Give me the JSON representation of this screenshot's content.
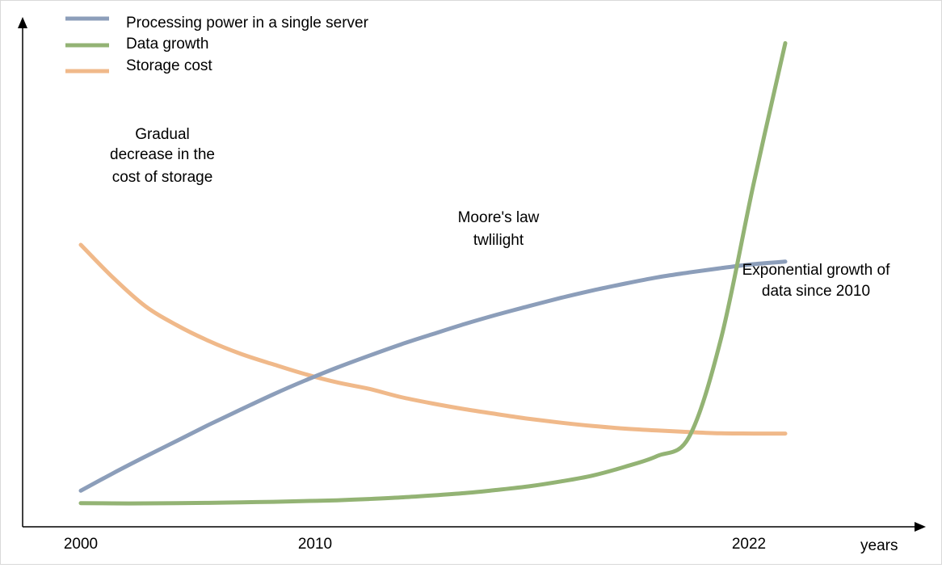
{
  "chart_data": {
    "type": "line",
    "title": "",
    "xlabel": "years",
    "ylabel": "",
    "xlim": [
      2000,
      2022
    ],
    "x_ticks": [
      "2000",
      "2010",
      "2022"
    ],
    "grid": false,
    "legend_position": "top-left",
    "colors": {
      "processing": "#8c9eba",
      "data": "#93b374",
      "storage": "#f0b98a",
      "axis": "#000000"
    },
    "legend": [
      {
        "key": "processing",
        "label": "Processing power in a single server"
      },
      {
        "key": "data",
        "label": "Data growth"
      },
      {
        "key": "storage",
        "label": "Storage cost"
      }
    ],
    "series": [
      {
        "key": "processing",
        "name": "Processing power in a single server",
        "x": [
          2000,
          2001,
          2002,
          2003,
          2004,
          2005,
          2006,
          2007,
          2008,
          2009,
          2010,
          2011,
          2012,
          2013,
          2014,
          2015,
          2016,
          2017,
          2018,
          2019,
          2020,
          2021,
          2022
        ],
        "y": [
          4.9,
          11.6,
          18.0,
          24.2,
          30.4,
          36.3,
          42.1,
          47.5,
          52.5,
          57.1,
          61.5,
          65.5,
          69.4,
          73.0,
          76.3,
          79.5,
          82.4,
          85.0,
          87.4,
          89.3,
          91.0,
          92.5,
          93.5
        ]
      },
      {
        "key": "data",
        "name": "Data growth",
        "x": [
          2000,
          2001,
          2002,
          2003,
          2004,
          2005,
          2006,
          2007,
          2008,
          2009,
          2010,
          2011,
          2012,
          2013,
          2014,
          2015,
          2016,
          2017,
          2018,
          2019,
          2020,
          2021,
          2022
        ],
        "y": [
          0.1,
          0.0,
          0.0,
          0.1,
          0.2,
          0.4,
          0.6,
          0.9,
          1.2,
          1.7,
          2.3,
          3.1,
          4.0,
          5.2,
          6.6,
          8.5,
          10.8,
          14.2,
          18.3,
          25.8,
          64.0,
          123.0,
          178.0
        ]
      },
      {
        "key": "storage",
        "name": "Storage cost",
        "x": [
          2000,
          2001,
          2002,
          2003,
          2004,
          2005,
          2006,
          2007,
          2008,
          2009,
          2010,
          2011,
          2012,
          2013,
          2014,
          2015,
          2016,
          2017,
          2018,
          2019,
          2020,
          2021,
          2022
        ],
        "y": [
          100.0,
          87.4,
          76.4,
          68.9,
          62.8,
          57.8,
          53.8,
          50.0,
          46.8,
          44.3,
          41.1,
          38.6,
          36.4,
          34.5,
          32.7,
          31.2,
          29.9,
          28.9,
          28.2,
          27.6,
          27.1,
          27.0,
          27.0
        ]
      }
    ],
    "annotations": [
      {
        "key": "storage-note",
        "lines": [
          "Gradual",
          "decrease in the",
          "cost of storage"
        ]
      },
      {
        "key": "moore-note",
        "lines": [
          "Moore's law",
          "twlilight"
        ]
      },
      {
        "key": "growth-note",
        "lines": [
          "Exponential growth of",
          "data since 2010"
        ]
      }
    ]
  }
}
